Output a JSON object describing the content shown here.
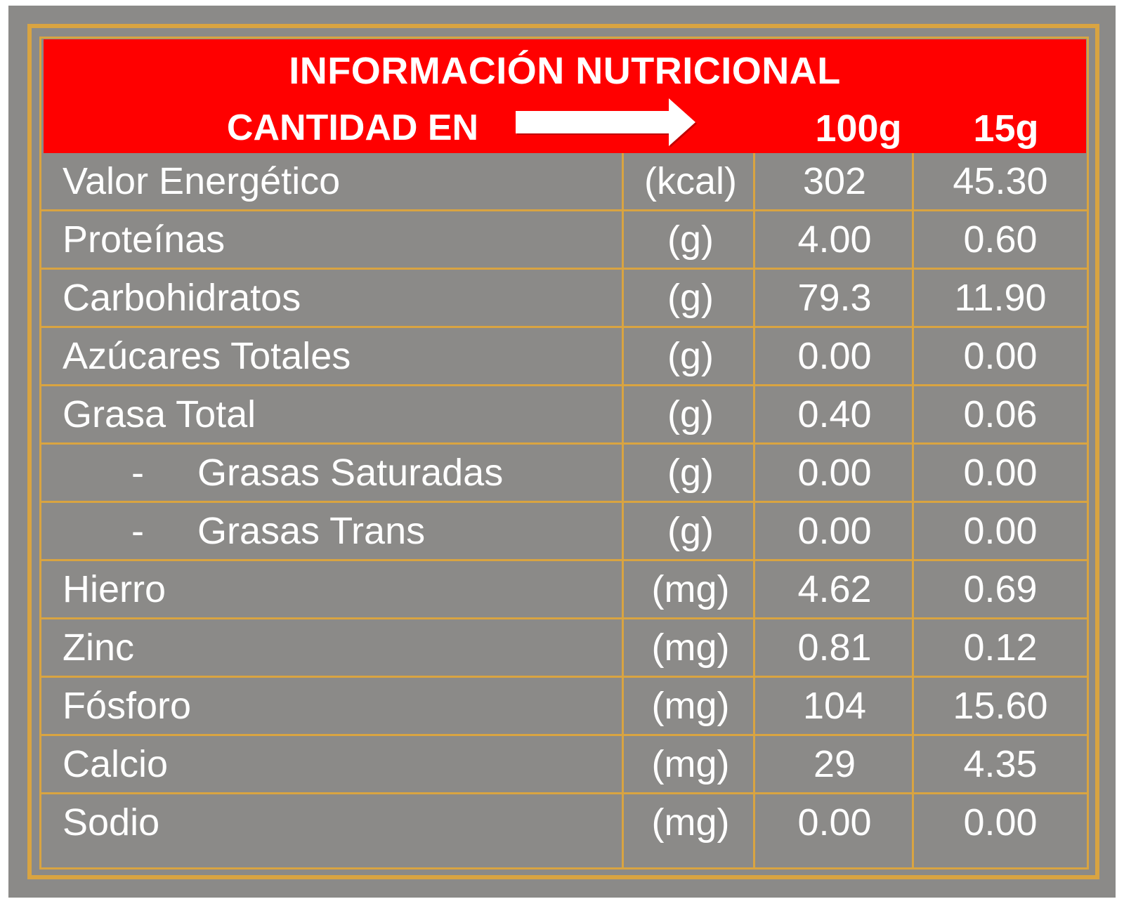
{
  "header": {
    "title": "INFORMACIÓN NUTRICIONAL",
    "amount_label": "CANTIDAD EN",
    "column_100g": "100g",
    "column_15g": "15g",
    "arrow_icon": "right-arrow-icon"
  },
  "colors": {
    "background": "#8b8a88",
    "header_red": "#ff0000",
    "border_gold": "#d9a441",
    "text": "#ffffff"
  },
  "rows": [
    {
      "name": "Valor Energético",
      "unit": "(kcal)",
      "per_100g": "302",
      "per_15g": "45.30"
    },
    {
      "name": "Proteínas",
      "unit": "(g)",
      "per_100g": "4.00",
      "per_15g": "0.60"
    },
    {
      "name": "Carbohidratos",
      "unit": "(g)",
      "per_100g": "79.3",
      "per_15g": "11.90"
    },
    {
      "name": "Azúcares Totales",
      "unit": "(g)",
      "per_100g": "0.00",
      "per_15g": "0.00"
    },
    {
      "name": "Grasa Total",
      "unit": "(g)",
      "per_100g": "0.40",
      "per_15g": "0.06"
    },
    {
      "dash": "-",
      "name": "Grasas Saturadas",
      "unit": "(g)",
      "per_100g": "0.00",
      "per_15g": "0.00"
    },
    {
      "dash": "-",
      "name": "Grasas Trans",
      "unit": "(g)",
      "per_100g": "0.00",
      "per_15g": "0.00"
    },
    {
      "name": "Hierro",
      "unit": "(mg)",
      "per_100g": "4.62",
      "per_15g": "0.69"
    },
    {
      "name": "Zinc",
      "unit": "(mg)",
      "per_100g": "0.81",
      "per_15g": "0.12"
    },
    {
      "name": "Fósforo",
      "unit": "(mg)",
      "per_100g": "104",
      "per_15g": "15.60"
    },
    {
      "name": "Calcio",
      "unit": "(mg)",
      "per_100g": "29",
      "per_15g": "4.35"
    },
    {
      "name": "Sodio",
      "unit": "(mg)",
      "per_100g": "0.00",
      "per_15g": "0.00"
    }
  ]
}
